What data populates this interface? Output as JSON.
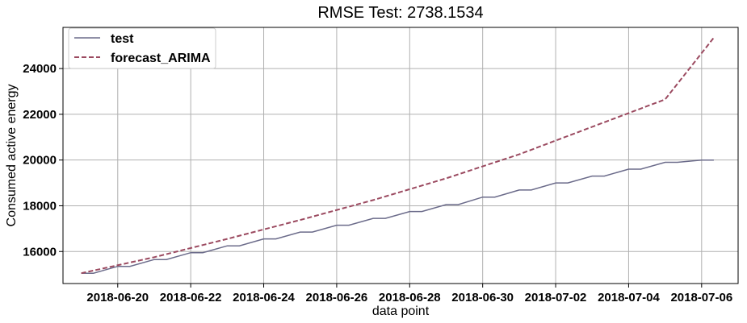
{
  "chart_data": {
    "type": "line",
    "title": "RMSE Test: 2738.1534",
    "xlabel": "data point",
    "ylabel": "Consumed active energy",
    "x_ticks": [
      "2018-06-20",
      "2018-06-22",
      "2018-06-24",
      "2018-06-26",
      "2018-06-28",
      "2018-06-30",
      "2018-07-02",
      "2018-07-04",
      "2018-07-06"
    ],
    "y_ticks": [
      16000,
      18000,
      20000,
      22000,
      24000
    ],
    "xlim": [
      "2018-06-18T12:00",
      "2018-07-07T00:00"
    ],
    "ylim": [
      14600,
      25800
    ],
    "grid": true,
    "legend_position": "top-left",
    "series": [
      {
        "name": "test",
        "style": "solid",
        "color": "#6b6b8a",
        "x": [
          "2018-06-19",
          "2018-06-19T08:00",
          "2018-06-20",
          "2018-06-20T08:00",
          "2018-06-21",
          "2018-06-21T08:00",
          "2018-06-22",
          "2018-06-22T08:00",
          "2018-06-23",
          "2018-06-23T08:00",
          "2018-06-24",
          "2018-06-24T08:00",
          "2018-06-25",
          "2018-06-25T08:00",
          "2018-06-26",
          "2018-06-26T08:00",
          "2018-06-27",
          "2018-06-27T08:00",
          "2018-06-28",
          "2018-06-28T08:00",
          "2018-06-29",
          "2018-06-29T08:00",
          "2018-06-30",
          "2018-06-30T08:00",
          "2018-07-01",
          "2018-07-01T08:00",
          "2018-07-02",
          "2018-07-02T08:00",
          "2018-07-03",
          "2018-07-03T08:00",
          "2018-07-04",
          "2018-07-04T08:00",
          "2018-07-05",
          "2018-07-05T08:00",
          "2018-07-06",
          "2018-07-06T08:00"
        ],
        "y": [
          15050,
          15050,
          15350,
          15350,
          15650,
          15650,
          15950,
          15950,
          16250,
          16250,
          16550,
          16550,
          16850,
          16850,
          17150,
          17150,
          17450,
          17450,
          17750,
          17750,
          18050,
          18050,
          18380,
          18380,
          18690,
          18690,
          19000,
          19000,
          19300,
          19300,
          19600,
          19600,
          19900,
          19900,
          20000,
          20000
        ]
      },
      {
        "name": "forecast_ARIMA",
        "style": "dashed",
        "color": "#9b4a60",
        "x": [
          "2018-06-19",
          "2018-06-21",
          "2018-06-23",
          "2018-06-25",
          "2018-06-27",
          "2018-06-29",
          "2018-07-01",
          "2018-07-03",
          "2018-07-05",
          "2018-07-06T08:00"
        ],
        "y": [
          15050,
          15750,
          16550,
          17380,
          18250,
          19200,
          20250,
          21450,
          22650,
          25350
        ]
      }
    ]
  }
}
